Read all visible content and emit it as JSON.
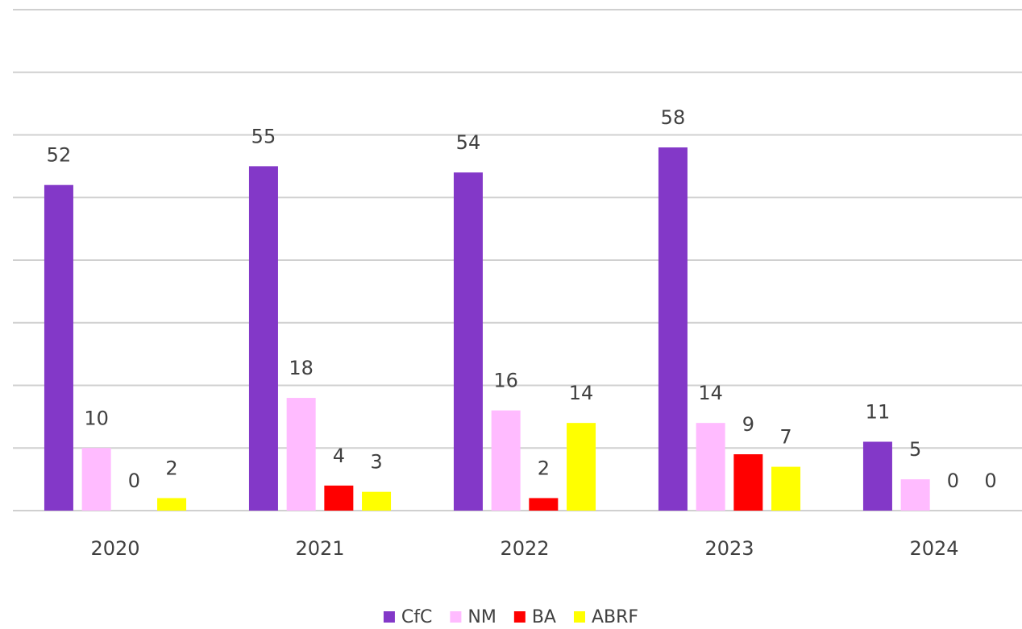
{
  "chart_data": {
    "type": "bar",
    "categories": [
      "2020",
      "2021",
      "2022",
      "2023",
      "2024"
    ],
    "series": [
      {
        "name": "CfC",
        "color": "#8338c8",
        "values": [
          52,
          55,
          54,
          58,
          11
        ]
      },
      {
        "name": "NM",
        "color": "#ffbbff",
        "values": [
          10,
          18,
          16,
          14,
          5
        ]
      },
      {
        "name": "BA",
        "color": "#ff0000",
        "values": [
          0,
          4,
          2,
          9,
          0
        ]
      },
      {
        "name": "ABRF",
        "color": "#ffff00",
        "values": [
          2,
          3,
          14,
          7,
          0
        ]
      }
    ],
    "ylim": [
      0,
      80
    ],
    "yticks": [
      0,
      10,
      20,
      30,
      40,
      50,
      60,
      70,
      80
    ],
    "grid": true,
    "legend": "bottom"
  }
}
